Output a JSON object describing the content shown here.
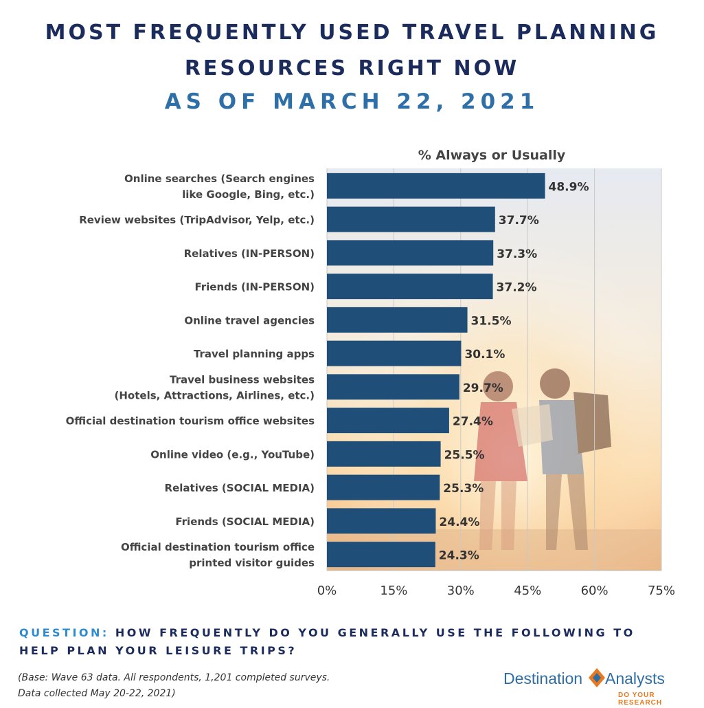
{
  "title_line1": "MOST FREQUENTLY USED TRAVEL PLANNING",
  "title_line2": "RESOURCES RIGHT NOW",
  "subtitle": "AS OF MARCH 22, 2021",
  "question_label": "QUESTION:",
  "question_text": "HOW FREQUENTLY DO YOU GENERALLY USE THE FOLLOWING TO HELP PLAN YOUR LEISURE TRIPS?",
  "base_line1": "(Base: Wave 63 data. All respondents, 1,201 completed surveys.",
  "base_line2": "Data collected May 20-22, 2021)",
  "logo": {
    "word1": "Destination",
    "word2": "Analysts",
    "tagline": "DO YOUR RESEARCH"
  },
  "colors": {
    "bar": "#1f4e79",
    "title": "#1b2b5c",
    "subtitle": "#2f6fa8",
    "question_label": "#2f8bd0",
    "logo_blue": "#2e6da4",
    "logo_orange": "#e8791e"
  },
  "chart_data": {
    "type": "bar",
    "orientation": "horizontal",
    "series_label": "% Always or Usually",
    "categories": [
      [
        "Online searches (Search engines",
        "like Google, Bing, etc.)"
      ],
      [
        "Review websites (TripAdvisor, Yelp, etc.)"
      ],
      [
        "Relatives (IN-PERSON)"
      ],
      [
        "Friends (IN-PERSON)"
      ],
      [
        "Online travel agencies"
      ],
      [
        "Travel planning apps"
      ],
      [
        "Travel business websites",
        "(Hotels, Attractions, Airlines, etc.)"
      ],
      [
        "Official destination tourism office websites"
      ],
      [
        "Online video (e.g., YouTube)"
      ],
      [
        "Relatives (SOCIAL MEDIA)"
      ],
      [
        "Friends (SOCIAL MEDIA)"
      ],
      [
        "Official destination tourism office",
        "printed visitor guides"
      ]
    ],
    "values": [
      48.9,
      37.7,
      37.3,
      37.2,
      31.5,
      30.1,
      29.7,
      27.4,
      25.5,
      25.3,
      24.4,
      24.3
    ],
    "value_labels": [
      "48.9%",
      "37.7%",
      "37.3%",
      "37.2%",
      "31.5%",
      "30.1%",
      "29.7%",
      "27.4%",
      "25.5%",
      "25.3%",
      "24.4%",
      "24.3%"
    ],
    "xlim": [
      0,
      75
    ],
    "xticks": [
      0,
      15,
      30,
      45,
      60,
      75
    ],
    "xtick_labels": [
      "0%",
      "15%",
      "30%",
      "45%",
      "60%",
      "75%"
    ],
    "grid": true,
    "background": "photo of a couple reading a map at sunset"
  }
}
